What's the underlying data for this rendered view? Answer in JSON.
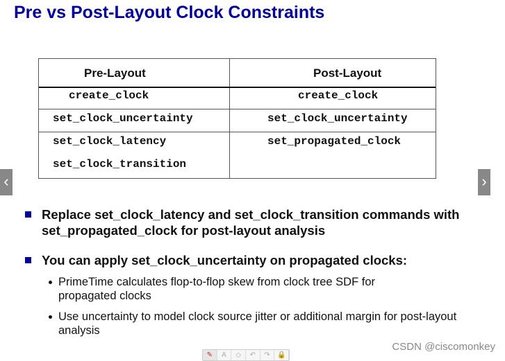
{
  "title": "Pre vs Post-Layout Clock Constraints",
  "table": {
    "headers": [
      "Pre-Layout",
      "Post-Layout"
    ],
    "rows": [
      {
        "pre": [
          "create_clock"
        ],
        "post": [
          "create_clock"
        ]
      },
      {
        "pre": [
          "set_clock_uncertainty"
        ],
        "post": [
          "set_clock_uncertainty"
        ]
      },
      {
        "pre": [
          "set_clock_latency",
          "set_clock_transition"
        ],
        "post": [
          "set_propagated_clock"
        ]
      }
    ]
  },
  "bullets": [
    {
      "text": "Replace set_clock_latency and set_clock_transition commands with set_propagated_clock for post-layout analysis"
    },
    {
      "text": "You can apply set_clock_uncertainty on propagated clocks:",
      "sub": [
        "PrimeTime calculates flop-to-flop skew from clock tree SDF for propagated clocks",
        "Use uncertainty to model clock source jitter or additional margin for post-layout analysis"
      ]
    }
  ],
  "nav": {
    "prev": "‹",
    "next": "›"
  },
  "toolbar": [
    "pen-icon",
    "text-icon",
    "eraser-icon",
    "undo-icon",
    "redo-icon",
    "lock-icon"
  ],
  "toolbar_glyphs": [
    "✎",
    "A",
    "◇",
    "↶",
    "↷",
    "🔒"
  ],
  "watermark": "CSDN @ciscomonkey",
  "colors": {
    "title": "#000099",
    "bullet": "#000099"
  }
}
